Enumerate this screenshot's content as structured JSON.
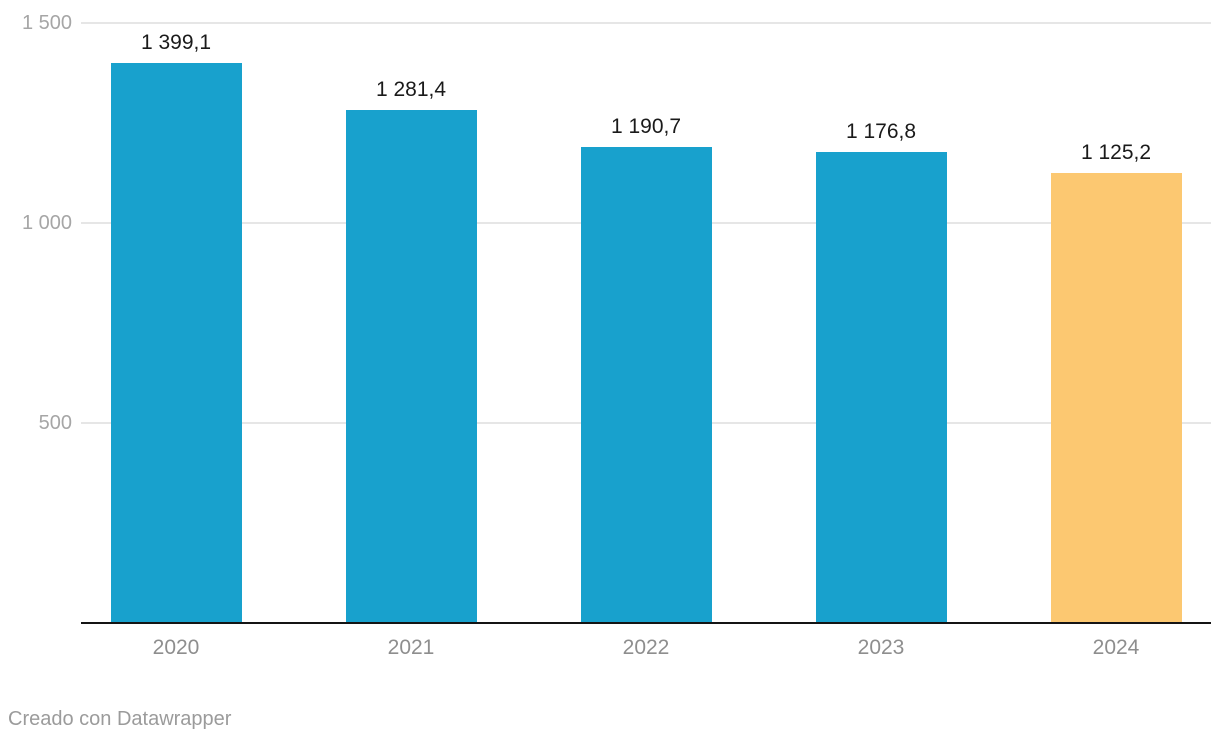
{
  "chart_data": {
    "type": "bar",
    "categories": [
      "2020",
      "2021",
      "2022",
      "2023",
      "2024"
    ],
    "values": [
      1399.1,
      1281.4,
      1190.7,
      1176.8,
      1125.2
    ],
    "value_labels": [
      "1 399,1",
      "1 281,4",
      "1 190,7",
      "1 176,8",
      "1 125,2"
    ],
    "series": [
      {
        "name": "valor",
        "values": [
          1399.1,
          1281.4,
          1190.7,
          1176.8,
          1125.2
        ]
      }
    ],
    "bar_colors": [
      "#18A1CD",
      "#18A1CD",
      "#18A1CD",
      "#18A1CD",
      "#FCC871"
    ],
    "title": "",
    "xlabel": "",
    "ylabel": "",
    "ylim": [
      0,
      1500
    ],
    "yticks": [
      {
        "value": 1500,
        "label": "1 500"
      },
      {
        "value": 1000,
        "label": "1 000"
      },
      {
        "value": 500,
        "label": "500"
      }
    ],
    "grid": true,
    "legend": "none",
    "highlighted_category": "2024"
  },
  "colors": {
    "bar_blue": "#18A1CD",
    "bar_orange": "#FCC871",
    "gridline": "#E6E6E6",
    "baseline": "#141414",
    "y_axis_text": "#A6A6A6",
    "x_axis_text": "#8E8E8E",
    "value_text": "#1A1A1A",
    "attribution_text": "#9B9B9B"
  },
  "footer": {
    "attribution": "Creado con Datawrapper"
  }
}
